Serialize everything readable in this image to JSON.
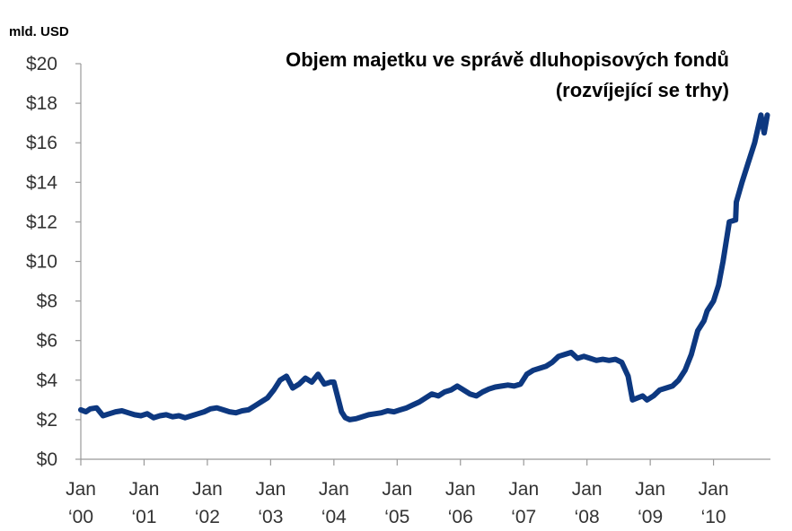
{
  "chart_data": {
    "type": "line",
    "unit_label": "mld. USD",
    "title": [
      "Objem majetku ve správě dluhopisových fondů",
      "(rozvíjející se trhy)"
    ],
    "ylim": [
      0,
      20
    ],
    "xlim": [
      2000.0,
      2010.9
    ],
    "yticks": [
      {
        "value": 0,
        "label": "$0"
      },
      {
        "value": 2,
        "label": "$2"
      },
      {
        "value": 4,
        "label": "$4"
      },
      {
        "value": 6,
        "label": "$6"
      },
      {
        "value": 8,
        "label": "$8"
      },
      {
        "value": 10,
        "label": "$10"
      },
      {
        "value": 12,
        "label": "$12"
      },
      {
        "value": 14,
        "label": "$14"
      },
      {
        "value": 16,
        "label": "$16"
      },
      {
        "value": 18,
        "label": "$18"
      },
      {
        "value": 20,
        "label": "$20"
      }
    ],
    "xticks": [
      {
        "value": 2000,
        "month": "Jan",
        "year": "‘00"
      },
      {
        "value": 2001,
        "month": "Jan",
        "year": "‘01"
      },
      {
        "value": 2002,
        "month": "Jan",
        "year": "‘02"
      },
      {
        "value": 2003,
        "month": "Jan",
        "year": "‘03"
      },
      {
        "value": 2004,
        "month": "Jan",
        "year": "‘04"
      },
      {
        "value": 2005,
        "month": "Jan",
        "year": "‘05"
      },
      {
        "value": 2006,
        "month": "Jan",
        "year": "‘06"
      },
      {
        "value": 2007,
        "month": "Jan",
        "year": "‘07"
      },
      {
        "value": 2008,
        "month": "Jan",
        "year": "‘08"
      },
      {
        "value": 2009,
        "month": "Jan",
        "year": "‘09"
      },
      {
        "value": 2010,
        "month": "Jan",
        "year": "‘10"
      }
    ],
    "grid": false,
    "legend": "none",
    "line_color": "#0d3880",
    "series": [
      {
        "x": [
          2000.0,
          2000.08,
          2000.15,
          2000.25,
          2000.35,
          2000.45,
          2000.55,
          2000.65,
          2000.75,
          2000.85,
          2000.95,
          2001.05,
          2001.15,
          2001.25,
          2001.35,
          2001.45,
          2001.55,
          2001.65,
          2001.75,
          2001.85,
          2001.95,
          2002.05,
          2002.15,
          2002.25,
          2002.35,
          2002.45,
          2002.55,
          2002.65,
          2002.75,
          2002.85,
          2002.95,
          2003.05,
          2003.15,
          2003.25,
          2003.35,
          2003.45,
          2003.55,
          2003.65,
          2003.75,
          2003.85,
          2003.95,
          2004.0,
          2004.12,
          2004.18,
          2004.25,
          2004.35,
          2004.45,
          2004.55,
          2004.65,
          2004.75,
          2004.85,
          2004.95,
          2005.05,
          2005.15,
          2005.25,
          2005.35,
          2005.45,
          2005.55,
          2005.65,
          2005.75,
          2005.85,
          2005.95,
          2006.05,
          2006.15,
          2006.25,
          2006.35,
          2006.45,
          2006.55,
          2006.65,
          2006.75,
          2006.85,
          2006.95,
          2007.05,
          2007.15,
          2007.25,
          2007.35,
          2007.45,
          2007.55,
          2007.65,
          2007.75,
          2007.85,
          2007.95,
          2008.05,
          2008.15,
          2008.25,
          2008.35,
          2008.45,
          2008.55,
          2008.65,
          2008.72,
          2008.8,
          2008.88,
          2008.95,
          2009.05,
          2009.15,
          2009.25,
          2009.35,
          2009.45,
          2009.55,
          2009.65,
          2009.75,
          2009.85,
          2009.9,
          2010.0,
          2010.08,
          2010.15,
          2010.25,
          2010.35,
          2010.36,
          2010.45,
          2010.55,
          2010.65,
          2010.75,
          2010.8,
          2010.85
        ],
        "y": [
          2.5,
          2.4,
          2.55,
          2.6,
          2.2,
          2.3,
          2.4,
          2.45,
          2.35,
          2.25,
          2.2,
          2.3,
          2.1,
          2.2,
          2.25,
          2.15,
          2.2,
          2.1,
          2.2,
          2.3,
          2.4,
          2.55,
          2.6,
          2.5,
          2.4,
          2.35,
          2.45,
          2.5,
          2.7,
          2.9,
          3.1,
          3.5,
          4.0,
          4.2,
          3.6,
          3.8,
          4.1,
          3.9,
          4.3,
          3.8,
          3.9,
          3.9,
          2.4,
          2.1,
          2.0,
          2.05,
          2.15,
          2.25,
          2.3,
          2.35,
          2.45,
          2.4,
          2.5,
          2.6,
          2.75,
          2.9,
          3.1,
          3.3,
          3.2,
          3.4,
          3.5,
          3.7,
          3.5,
          3.3,
          3.2,
          3.4,
          3.55,
          3.65,
          3.7,
          3.75,
          3.7,
          3.8,
          4.3,
          4.5,
          4.6,
          4.7,
          4.9,
          5.2,
          5.3,
          5.4,
          5.1,
          5.2,
          5.1,
          5.0,
          5.05,
          5.0,
          5.05,
          4.9,
          4.2,
          3.0,
          3.1,
          3.2,
          3.0,
          3.2,
          3.5,
          3.6,
          3.7,
          4.0,
          4.5,
          5.3,
          6.5,
          7.0,
          7.5,
          8.0,
          8.8,
          10.0,
          12.0,
          12.1,
          13.0,
          14.0,
          15.0,
          16.0,
          17.4,
          16.5,
          17.4
        ]
      }
    ]
  }
}
